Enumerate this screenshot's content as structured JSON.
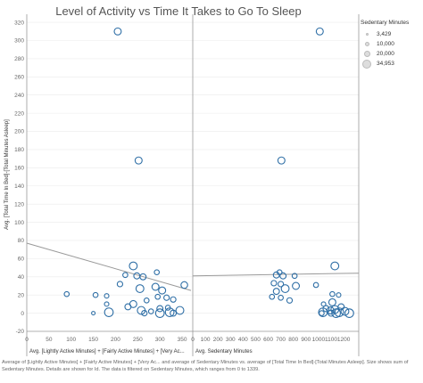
{
  "chart_data": {
    "type": "scatter",
    "title": "Level of Activity vs Time It Takes to Go To Sleep",
    "ylabel": "Avg. [Total Time In Bed]-[Total Minutes Asleep]",
    "ylim": [
      -20,
      325
    ],
    "yticks": [
      "-20",
      "0",
      "20",
      "40",
      "60",
      "80",
      "100",
      "120",
      "140",
      "160",
      "180",
      "200",
      "220",
      "240",
      "260",
      "280",
      "300",
      "320"
    ],
    "legend": {
      "title": "Sedentary Minutes",
      "placement": "right",
      "items": [
        "3,429",
        "10,000",
        "20,000",
        "34,953"
      ]
    },
    "panels": [
      {
        "xlabel": "Avg. [Lightly Active Minutes] + [Fairly Active Minutes] + [Very Ac...",
        "xlim": [
          0,
          370
        ],
        "xticks": [
          "0",
          "50",
          "100",
          "150",
          "200",
          "250",
          "300",
          "350"
        ],
        "trend": [
          [
            0,
            77
          ],
          [
            370,
            25
          ]
        ],
        "points": [
          {
            "x": 205,
            "y": 310,
            "size": 20000
          },
          {
            "x": 252,
            "y": 168,
            "size": 20000
          },
          {
            "x": 240,
            "y": 52,
            "size": 25000
          },
          {
            "x": 293,
            "y": 45,
            "size": 10000
          },
          {
            "x": 222,
            "y": 42,
            "size": 10000
          },
          {
            "x": 262,
            "y": 40,
            "size": 15000
          },
          {
            "x": 248,
            "y": 41,
            "size": 15000
          },
          {
            "x": 210,
            "y": 32,
            "size": 12000
          },
          {
            "x": 355,
            "y": 31,
            "size": 18000
          },
          {
            "x": 290,
            "y": 29,
            "size": 20000
          },
          {
            "x": 255,
            "y": 27,
            "size": 25000
          },
          {
            "x": 305,
            "y": 25,
            "size": 20000
          },
          {
            "x": 90,
            "y": 21,
            "size": 10000
          },
          {
            "x": 155,
            "y": 20,
            "size": 10000
          },
          {
            "x": 180,
            "y": 19,
            "size": 8000
          },
          {
            "x": 295,
            "y": 18,
            "size": 10000
          },
          {
            "x": 315,
            "y": 17,
            "size": 12000
          },
          {
            "x": 330,
            "y": 15,
            "size": 12000
          },
          {
            "x": 270,
            "y": 14,
            "size": 10000
          },
          {
            "x": 240,
            "y": 10,
            "size": 20000
          },
          {
            "x": 180,
            "y": 10,
            "size": 8000
          },
          {
            "x": 228,
            "y": 7,
            "size": 15000
          },
          {
            "x": 318,
            "y": 6,
            "size": 10000
          },
          {
            "x": 300,
            "y": 5,
            "size": 15000
          },
          {
            "x": 258,
            "y": 3,
            "size": 25000
          },
          {
            "x": 345,
            "y": 3,
            "size": 25000
          },
          {
            "x": 280,
            "y": 2,
            "size": 10000
          },
          {
            "x": 322,
            "y": 1,
            "size": 30000
          },
          {
            "x": 300,
            "y": 0,
            "size": 30000
          },
          {
            "x": 185,
            "y": 1,
            "size": 30000
          },
          {
            "x": 150,
            "y": 0,
            "size": 5000
          },
          {
            "x": 330,
            "y": 0,
            "size": 15000
          },
          {
            "x": 265,
            "y": 0,
            "size": 12000
          }
        ]
      },
      {
        "xlabel": "Avg. Sedentary Minutes",
        "xlim": [
          0,
          1320
        ],
        "xticks": [
          "0",
          "100",
          "200",
          "300",
          "400",
          "500",
          "600",
          "700",
          "800",
          "900",
          "1000",
          "1100",
          "1200"
        ],
        "trend": [
          [
            0,
            41
          ],
          [
            1320,
            44
          ]
        ],
        "points": [
          {
            "x": 1010,
            "y": 310,
            "size": 20000
          },
          {
            "x": 705,
            "y": 168,
            "size": 20000
          },
          {
            "x": 1130,
            "y": 52,
            "size": 25000
          },
          {
            "x": 690,
            "y": 45,
            "size": 10000
          },
          {
            "x": 665,
            "y": 42,
            "size": 15000
          },
          {
            "x": 718,
            "y": 41,
            "size": 15000
          },
          {
            "x": 810,
            "y": 41,
            "size": 10000
          },
          {
            "x": 645,
            "y": 33,
            "size": 12000
          },
          {
            "x": 700,
            "y": 32,
            "size": 12000
          },
          {
            "x": 980,
            "y": 31,
            "size": 10000
          },
          {
            "x": 820,
            "y": 30,
            "size": 20000
          },
          {
            "x": 735,
            "y": 27,
            "size": 25000
          },
          {
            "x": 665,
            "y": 24,
            "size": 15000
          },
          {
            "x": 1110,
            "y": 21,
            "size": 10000
          },
          {
            "x": 1160,
            "y": 20,
            "size": 8000
          },
          {
            "x": 630,
            "y": 18,
            "size": 10000
          },
          {
            "x": 700,
            "y": 17,
            "size": 10000
          },
          {
            "x": 770,
            "y": 14,
            "size": 12000
          },
          {
            "x": 1110,
            "y": 12,
            "size": 20000
          },
          {
            "x": 1040,
            "y": 10,
            "size": 8000
          },
          {
            "x": 1180,
            "y": 7,
            "size": 15000
          },
          {
            "x": 1060,
            "y": 5,
            "size": 15000
          },
          {
            "x": 1130,
            "y": 4,
            "size": 25000
          },
          {
            "x": 1095,
            "y": 3,
            "size": 20000
          },
          {
            "x": 1210,
            "y": 2,
            "size": 25000
          },
          {
            "x": 1035,
            "y": 1,
            "size": 30000
          },
          {
            "x": 1165,
            "y": 1,
            "size": 30000
          },
          {
            "x": 1245,
            "y": 0,
            "size": 30000
          },
          {
            "x": 1140,
            "y": 0,
            "size": 30000
          },
          {
            "x": 1100,
            "y": 0,
            "size": 15000
          },
          {
            "x": 1025,
            "y": 0,
            "size": 10000
          }
        ]
      }
    ],
    "caption": "Average of [Lightly Active Minutes] + [Fairly Active Minutes] + [Very Ac... and average of Sedentary Minutes vs. average of [Total Time In Bed]-[Total Minutes Asleep].  Size shows sum of Sedentary Minutes.  Details are shown for Id. The data is filtered on Sedentary Minutes, which ranges from 0 to 1339."
  },
  "colors": {
    "marker_stroke": "#2f6fa6",
    "trend": "#999999",
    "axis": "#999999",
    "grid": "#ebebeb"
  }
}
